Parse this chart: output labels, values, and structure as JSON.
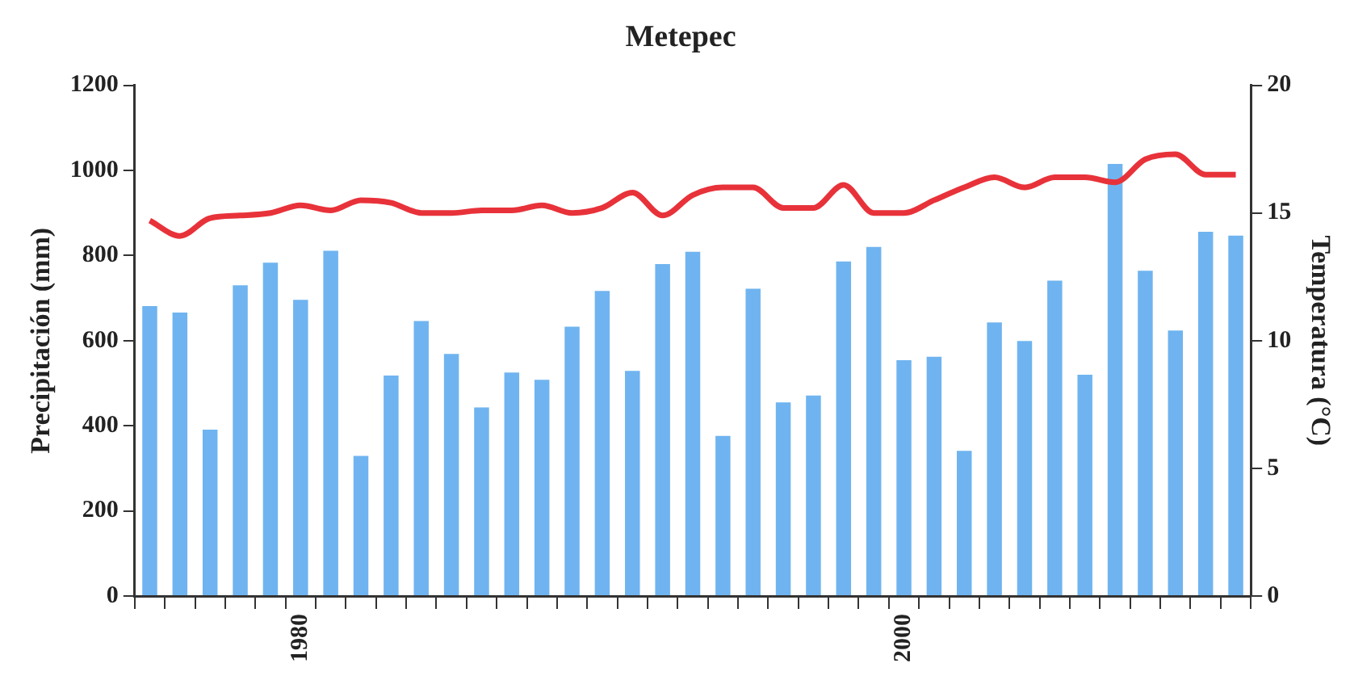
{
  "chart_data": {
    "type": "bar",
    "title": "Metepec",
    "ylabel": "Precipitación (mm)",
    "y2label": "Temperatura (°C)",
    "categories": [
      null,
      null,
      null,
      null,
      null,
      "1980",
      null,
      null,
      null,
      null,
      null,
      null,
      null,
      null,
      null,
      null,
      null,
      null,
      null,
      null,
      null,
      null,
      null,
      null,
      null,
      "2000",
      null,
      null,
      null,
      null,
      null,
      null,
      null,
      null,
      null,
      null,
      null
    ],
    "series": [
      {
        "color": "#6fb4f0",
        "values": [
          681,
          666,
          391,
          730,
          783,
          696,
          811,
          329,
          518,
          646,
          569,
          443,
          525,
          508,
          633,
          717,
          529,
          780,
          809,
          376,
          722,
          455,
          471,
          786,
          820,
          554,
          562,
          341,
          643,
          599,
          741,
          520,
          1015,
          764,
          624,
          856,
          847
        ]
      },
      {
        "type": "line",
        "axis": "y2",
        "color": "#e8323a",
        "values": [
          14.7,
          14.1,
          14.8,
          14.9,
          15.0,
          15.3,
          15.1,
          15.5,
          15.4,
          15.0,
          15.0,
          15.1,
          15.1,
          15.3,
          15.0,
          15.2,
          15.8,
          14.9,
          15.7,
          16.0,
          16.0,
          15.2,
          15.2,
          16.1,
          15.0,
          15.0,
          15.5,
          16.0,
          16.4,
          16.0,
          16.4,
          16.4,
          16.2,
          17.1,
          17.3,
          16.5,
          16.5
        ]
      }
    ],
    "ylim": [
      0,
      1200
    ],
    "yticks": [
      0,
      200,
      400,
      600,
      800,
      1000,
      1200
    ],
    "y2lim": [
      0,
      20
    ],
    "y2ticks": [
      0,
      5,
      10,
      15,
      20
    ],
    "legend": false,
    "marker": "none",
    "line_style": "solid"
  }
}
